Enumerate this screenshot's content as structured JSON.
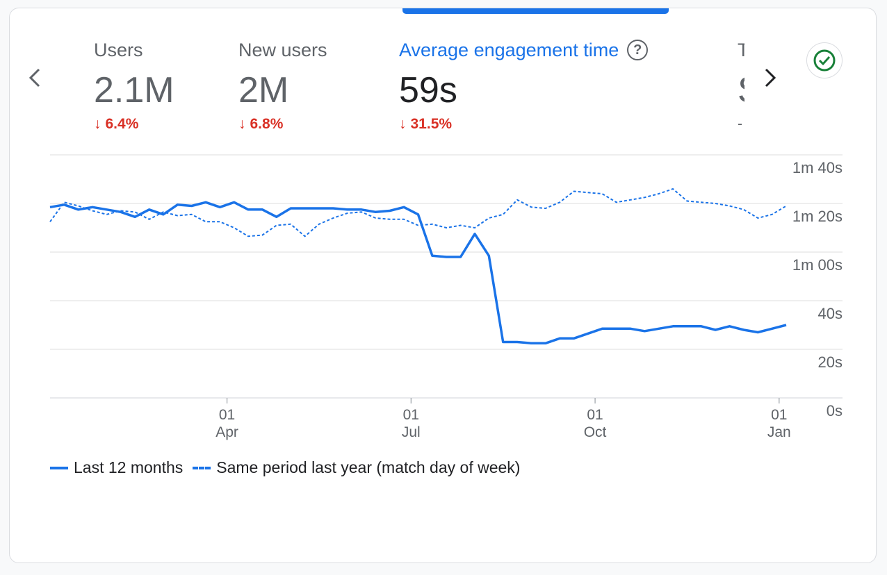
{
  "metrics": [
    {
      "label": "Users",
      "value": "2.1M",
      "delta": "6.4%"
    },
    {
      "label": "New users",
      "value": "2M",
      "delta": "6.8%"
    },
    {
      "label": "Average engagement time",
      "value": "59s",
      "delta": "31.5%"
    },
    {
      "label": "T",
      "value": "S",
      "delta": "-"
    }
  ],
  "colors": {
    "accent": "#1a73e8",
    "negative": "#d93025",
    "check": "#188038"
  },
  "legend": {
    "current": "Last 12 months",
    "previous": "Same period last year (match day of week)"
  },
  "chart_data": {
    "type": "line",
    "title": "Average engagement time",
    "ylim": [
      0,
      100
    ],
    "y_ticks": [
      {
        "v": 100,
        "label": "1m 40s"
      },
      {
        "v": 80,
        "label": "1m 20s"
      },
      {
        "v": 60,
        "label": "1m 00s"
      },
      {
        "v": 40,
        "label": "40s"
      },
      {
        "v": 20,
        "label": "20s"
      },
      {
        "v": 0,
        "label": "0s"
      }
    ],
    "x_ticks": [
      {
        "i": 12.5,
        "day": "01",
        "month": "Apr"
      },
      {
        "i": 25.5,
        "day": "01",
        "month": "Jul"
      },
      {
        "i": 38.5,
        "day": "01",
        "month": "Oct"
      },
      {
        "i": 51.5,
        "day": "01",
        "month": "Jan"
      }
    ],
    "x_count": 53,
    "series": [
      {
        "name": "Last 12 months",
        "style": "solid",
        "values": [
          78.5,
          79.5,
          77.5,
          78.5,
          77.5,
          76.5,
          74.5,
          77.5,
          75.5,
          79.5,
          79,
          80.5,
          78.5,
          80.5,
          77.5,
          77.5,
          74.5,
          78,
          78,
          78,
          78,
          77.5,
          77.5,
          76.5,
          77,
          78.5,
          75.5,
          58.5,
          58,
          58,
          67.5,
          58.5,
          23,
          23,
          22.5,
          22.5,
          24.5,
          24.5,
          26.5,
          28.5,
          28.5,
          28.5,
          27.5,
          28.5,
          29.5,
          29.5,
          29.5,
          28,
          29.5,
          28,
          27,
          28.5,
          30
        ]
      },
      {
        "name": "Same period last year (match day of week)",
        "style": "dashed",
        "values": [
          72.5,
          80.5,
          79,
          77,
          75.5,
          77,
          76.5,
          73.5,
          76.5,
          75,
          75.5,
          72.5,
          72.5,
          70,
          66.5,
          67,
          71,
          71.5,
          66.5,
          71.5,
          74,
          76,
          76.5,
          74,
          73.5,
          73.5,
          71,
          71.5,
          70,
          71,
          70,
          74,
          75.5,
          81.5,
          78.5,
          78,
          80.5,
          85,
          84.5,
          84,
          80.5,
          81.5,
          82.5,
          84,
          86,
          81,
          80.5,
          80,
          79,
          77.5,
          74,
          75.5,
          79
        ]
      }
    ]
  }
}
